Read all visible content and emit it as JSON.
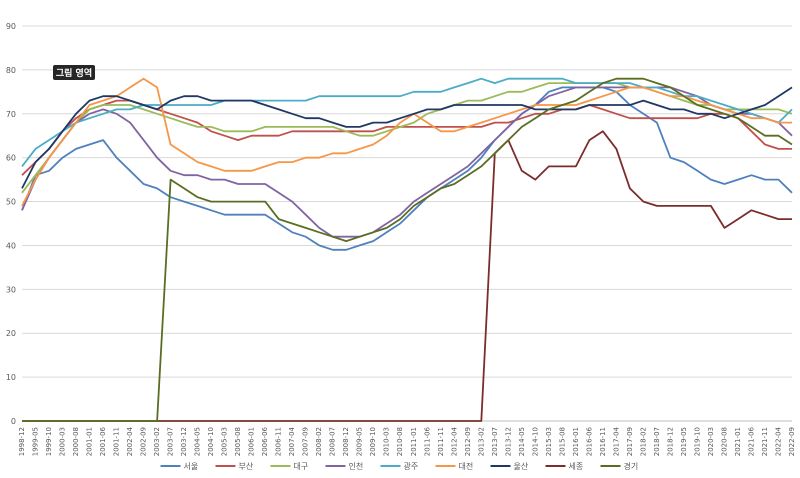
{
  "chart_data": {
    "type": "line",
    "ylim": [
      0,
      90
    ],
    "yticks": [
      0,
      10,
      20,
      30,
      40,
      50,
      60,
      70,
      80,
      90
    ],
    "grid": true,
    "legend_position": "bottom",
    "tooltip": "그림 영역",
    "colors": {
      "서울": "#4e81bd",
      "부산": "#c0504d",
      "대구": "#9bbb59",
      "인천": "#8064a2",
      "광주": "#4bacc6",
      "대전": "#f79646",
      "울산": "#1f3864",
      "세종": "#7b2c2c",
      "경기": "#5a6e22"
    },
    "x_ticks": [
      "1998-12",
      "1999-05",
      "1999-10",
      "2000-03",
      "2000-08",
      "2001-01",
      "2001-06",
      "2001-11",
      "2002-04",
      "2002-09",
      "2003-02",
      "2003-07",
      "2003-12",
      "2004-05",
      "2004-10",
      "2005-03",
      "2005-08",
      "2006-01",
      "2006-06",
      "2006-11",
      "2007-04",
      "2007-09",
      "2008-02",
      "2008-07",
      "2008-12",
      "2009-05",
      "2009-10",
      "2010-03",
      "2010-08",
      "2011-01",
      "2011-06",
      "2011-11",
      "2012-04",
      "2012-09",
      "2013-02",
      "2013-07",
      "2013-12",
      "2014-05",
      "2014-10",
      "2015-03",
      "2015-08",
      "2016-01",
      "2016-06",
      "2016-11",
      "2017-04",
      "2017-09",
      "2018-02",
      "2018-07",
      "2018-12",
      "2019-05",
      "2019-10",
      "2020-03",
      "2020-08",
      "2021-01",
      "2021-06",
      "2021-11",
      "2022-04",
      "2022-09"
    ],
    "series": [
      {
        "name": "서울",
        "values": [
          48,
          56,
          57,
          60,
          62,
          63,
          64,
          60,
          57,
          54,
          53,
          51,
          50,
          49,
          48,
          47,
          47,
          47,
          47,
          45,
          43,
          42,
          40,
          39,
          39,
          40,
          41,
          43,
          45,
          48,
          51,
          53,
          55,
          57,
          60,
          64,
          67,
          70,
          72,
          75,
          76,
          76,
          76,
          76,
          75,
          72,
          70,
          68,
          60,
          59,
          57,
          55,
          54,
          55,
          56,
          55,
          55,
          52
        ]
      },
      {
        "name": "부산",
        "values": [
          56,
          59,
          62,
          66,
          69,
          71,
          72,
          73,
          73,
          72,
          71,
          70,
          69,
          68,
          66,
          65,
          64,
          65,
          65,
          65,
          66,
          66,
          66,
          66,
          66,
          66,
          66,
          67,
          67,
          67,
          67,
          67,
          67,
          67,
          67,
          68,
          68,
          69,
          70,
          70,
          71,
          71,
          72,
          71,
          70,
          69,
          69,
          69,
          69,
          69,
          69,
          70,
          70,
          69,
          66,
          63,
          62,
          62
        ]
      },
      {
        "name": "대구",
        "values": [
          52,
          56,
          60,
          64,
          68,
          71,
          72,
          72,
          72,
          71,
          70,
          69,
          68,
          67,
          67,
          66,
          66,
          66,
          67,
          67,
          67,
          67,
          67,
          67,
          66,
          65,
          65,
          66,
          67,
          68,
          70,
          71,
          72,
          73,
          73,
          74,
          75,
          75,
          76,
          77,
          77,
          77,
          77,
          77,
          77,
          76,
          76,
          75,
          74,
          73,
          72,
          72,
          71,
          71,
          71,
          71,
          71,
          70
        ]
      },
      {
        "name": "인천",
        "values": [
          48,
          55,
          60,
          64,
          68,
          70,
          71,
          70,
          68,
          64,
          60,
          57,
          56,
          56,
          55,
          55,
          54,
          54,
          54,
          52,
          50,
          47,
          44,
          42,
          42,
          42,
          43,
          45,
          47,
          50,
          52,
          54,
          56,
          58,
          61,
          64,
          67,
          70,
          72,
          74,
          75,
          76,
          76,
          76,
          76,
          76,
          76,
          76,
          76,
          75,
          74,
          72,
          71,
          70,
          70,
          69,
          68,
          65
        ]
      },
      {
        "name": "광주",
        "values": [
          58,
          62,
          64,
          66,
          68,
          69,
          70,
          71,
          71,
          72,
          72,
          72,
          72,
          72,
          72,
          73,
          73,
          73,
          73,
          73,
          73,
          73,
          74,
          74,
          74,
          74,
          74,
          74,
          74,
          75,
          75,
          75,
          76,
          77,
          78,
          77,
          78,
          78,
          78,
          78,
          78,
          77,
          77,
          77,
          77,
          77,
          76,
          76,
          75,
          74,
          74,
          73,
          72,
          71,
          70,
          69,
          68,
          71
        ]
      },
      {
        "name": "대전",
        "values": [
          49,
          55,
          60,
          64,
          68,
          72,
          73,
          74,
          76,
          78,
          76,
          63,
          61,
          59,
          58,
          57,
          57,
          57,
          58,
          59,
          59,
          60,
          60,
          61,
          61,
          62,
          63,
          65,
          68,
          70,
          68,
          66,
          66,
          67,
          68,
          69,
          70,
          71,
          72,
          72,
          72,
          72,
          73,
          74,
          75,
          76,
          76,
          75,
          74,
          74,
          73,
          72,
          71,
          70,
          69,
          69,
          68,
          68
        ]
      },
      {
        "name": "울산",
        "values": [
          53,
          59,
          62,
          66,
          70,
          73,
          74,
          74,
          73,
          72,
          71,
          73,
          74,
          74,
          73,
          73,
          73,
          73,
          72,
          71,
          70,
          69,
          69,
          68,
          67,
          67,
          68,
          68,
          69,
          70,
          71,
          71,
          72,
          72,
          72,
          72,
          72,
          72,
          71,
          71,
          71,
          71,
          72,
          72,
          72,
          72,
          73,
          72,
          71,
          71,
          70,
          70,
          69,
          70,
          71,
          72,
          74,
          76
        ]
      },
      {
        "name": "세종",
        "values": [
          0,
          0,
          0,
          0,
          0,
          0,
          0,
          0,
          0,
          0,
          0,
          0,
          0,
          0,
          0,
          0,
          0,
          0,
          0,
          0,
          0,
          0,
          0,
          0,
          0,
          0,
          0,
          0,
          0,
          0,
          0,
          0,
          0,
          0,
          0,
          61,
          64,
          57,
          55,
          58,
          58,
          58,
          64,
          66,
          62,
          53,
          50,
          49,
          49,
          49,
          49,
          49,
          44,
          46,
          48,
          47,
          46,
          46
        ]
      },
      {
        "name": "경기",
        "values": [
          0,
          0,
          0,
          0,
          0,
          0,
          0,
          0,
          0,
          0,
          0,
          55,
          53,
          51,
          50,
          50,
          50,
          50,
          50,
          46,
          45,
          44,
          43,
          42,
          41,
          42,
          43,
          44,
          46,
          49,
          51,
          53,
          54,
          56,
          58,
          61,
          64,
          67,
          69,
          71,
          72,
          73,
          75,
          77,
          78,
          78,
          78,
          77,
          76,
          74,
          72,
          71,
          70,
          69,
          67,
          65,
          65,
          63
        ]
      }
    ]
  }
}
